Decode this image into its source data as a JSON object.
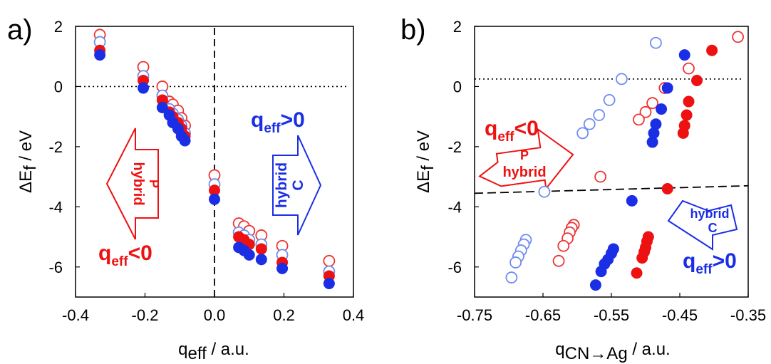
{
  "colors": {
    "red": "#ee1111",
    "blue": "#1a2ee6",
    "open_blue": "#6f8df0",
    "open_red": "#ee3333"
  },
  "chart_data": [
    {
      "type": "scatter",
      "panel_label": "a)",
      "xlabel_main": "q",
      "xlabel_sub": "eff",
      "xlabel_unit": " / a.u.",
      "ylabel_main": "ΔE",
      "ylabel_sub": "f",
      "ylabel_unit": " / eV",
      "xlim": [
        -0.4,
        0.4
      ],
      "ylim": [
        -7,
        2
      ],
      "xticks": [
        -0.4,
        -0.2,
        0.0,
        0.2,
        0.4
      ],
      "xtick_labels": [
        "-0.4",
        "-0.2",
        "0.0",
        "0.2",
        "0.4"
      ],
      "yticks": [
        2,
        0,
        -2,
        -4,
        -6
      ],
      "ytick_labels": [
        "2",
        "0",
        "-2",
        "-4",
        "-6"
      ],
      "reference_lines": {
        "horizontal_dotted_y": 0,
        "vertical_dashed_x": 0
      },
      "annotations": [
        {
          "text_main": "q",
          "text_sub": "eff",
          "text_tail": ">0",
          "color": "blue"
        },
        {
          "text_main": "q",
          "text_sub": "eff",
          "text_tail": "<0",
          "color": "red"
        }
      ],
      "arrows": [
        {
          "direction": "left",
          "color": "red",
          "lines": [
            "P",
            "hybrid"
          ]
        },
        {
          "direction": "right",
          "color": "blue",
          "lines": [
            "hybrid",
            "C"
          ]
        }
      ],
      "series": [
        {
          "style": "open-red",
          "points": [
            [
              -0.33,
              1.72
            ],
            [
              -0.205,
              0.65
            ],
            [
              -0.15,
              0.0
            ],
            [
              -0.13,
              -0.5
            ],
            [
              -0.12,
              -0.6
            ],
            [
              -0.105,
              -0.8
            ],
            [
              -0.095,
              -1.05
            ],
            [
              -0.085,
              -1.3
            ],
            [
              0.0,
              -2.95
            ],
            [
              0.07,
              -4.55
            ],
            [
              0.085,
              -4.65
            ],
            [
              0.1,
              -4.8
            ],
            [
              0.135,
              -4.95
            ],
            [
              0.195,
              -5.3
            ],
            [
              0.33,
              -5.8
            ]
          ]
        },
        {
          "style": "open-blue",
          "points": [
            [
              -0.33,
              1.48
            ],
            [
              -0.205,
              0.35
            ],
            [
              -0.15,
              -0.3
            ],
            [
              -0.13,
              -0.75
            ],
            [
              -0.12,
              -0.9
            ],
            [
              -0.105,
              -1.1
            ],
            [
              -0.095,
              -1.3
            ],
            [
              -0.085,
              -1.55
            ],
            [
              0.0,
              -3.25
            ],
            [
              0.07,
              -4.85
            ],
            [
              0.085,
              -4.95
            ],
            [
              0.1,
              -5.1
            ],
            [
              0.135,
              -5.25
            ],
            [
              0.195,
              -5.6
            ],
            [
              0.33,
              -6.15
            ]
          ]
        },
        {
          "style": "filled-red",
          "points": [
            [
              -0.33,
              1.2
            ],
            [
              -0.205,
              0.2
            ],
            [
              -0.15,
              -0.45
            ],
            [
              -0.13,
              -0.85
            ],
            [
              -0.12,
              -1.0
            ],
            [
              -0.105,
              -1.2
            ],
            [
              -0.095,
              -1.4
            ],
            [
              -0.085,
              -1.65
            ],
            [
              0.0,
              -3.45
            ],
            [
              0.07,
              -5.0
            ],
            [
              0.085,
              -5.1
            ],
            [
              0.1,
              -5.25
            ],
            [
              0.135,
              -5.4
            ],
            [
              0.195,
              -5.85
            ],
            [
              0.33,
              -6.3
            ]
          ]
        },
        {
          "style": "filled-blue",
          "points": [
            [
              -0.33,
              1.05
            ],
            [
              -0.205,
              -0.05
            ],
            [
              -0.15,
              -0.7
            ],
            [
              -0.13,
              -0.95
            ],
            [
              -0.12,
              -1.2
            ],
            [
              -0.105,
              -1.4
            ],
            [
              -0.095,
              -1.65
            ],
            [
              -0.085,
              -1.8
            ],
            [
              0.0,
              -3.75
            ],
            [
              0.07,
              -5.35
            ],
            [
              0.085,
              -5.45
            ],
            [
              0.1,
              -5.6
            ],
            [
              0.135,
              -5.75
            ],
            [
              0.195,
              -6.05
            ],
            [
              0.33,
              -6.55
            ]
          ]
        }
      ]
    },
    {
      "type": "scatter",
      "panel_label": "b)",
      "xlabel_main": "q",
      "xlabel_sub": "CN→Ag",
      "xlabel_unit": " / a.u.",
      "ylabel_main": "ΔE",
      "ylabel_sub": "f",
      "ylabel_unit": " / eV",
      "xlim": [
        -0.75,
        -0.35
      ],
      "ylim": [
        -7,
        2
      ],
      "xticks": [
        -0.75,
        -0.65,
        -0.55,
        -0.45,
        -0.35
      ],
      "xtick_labels": [
        "-0.75",
        "-0.65",
        "-0.55",
        "-0.45",
        "-0.35"
      ],
      "yticks": [
        2,
        0,
        -2,
        -4,
        -6
      ],
      "ytick_labels": [
        "2",
        "0",
        "-2",
        "-4",
        "-6"
      ],
      "reference_lines": {
        "horizontal_dotted_y": 0.25,
        "dashed_line": [
          [
            -0.75,
            -3.55
          ],
          [
            -0.35,
            -3.3
          ]
        ]
      },
      "annotations": [
        {
          "text_main": "q",
          "text_sub": "eff",
          "text_tail": "<0",
          "color": "red"
        },
        {
          "text_main": "q",
          "text_sub": "eff",
          "text_tail": ">0",
          "color": "blue"
        }
      ],
      "arrows": [
        {
          "direction": "up-right",
          "color": "red",
          "lines": [
            "P",
            "hybrid"
          ]
        },
        {
          "direction": "down-right",
          "color": "blue",
          "lines": [
            "hybrid",
            "C"
          ]
        }
      ],
      "series": [
        {
          "style": "open-blue",
          "points": [
            [
              -0.485,
              1.45
            ],
            [
              -0.535,
              0.25
            ],
            [
              -0.553,
              -0.45
            ],
            [
              -0.568,
              -0.95
            ],
            [
              -0.582,
              -1.25
            ],
            [
              -0.592,
              -1.55
            ],
            [
              -0.648,
              -3.5
            ],
            [
              -0.675,
              -5.1
            ],
            [
              -0.678,
              -5.25
            ],
            [
              -0.682,
              -5.45
            ],
            [
              -0.686,
              -5.65
            ],
            [
              -0.69,
              -5.85
            ],
            [
              -0.696,
              -6.35
            ]
          ]
        },
        {
          "style": "open-red",
          "points": [
            [
              -0.365,
              1.65
            ],
            [
              -0.437,
              0.6
            ],
            [
              -0.472,
              -0.05
            ],
            [
              -0.49,
              -0.55
            ],
            [
              -0.5,
              -0.85
            ],
            [
              -0.51,
              -1.1
            ],
            [
              -0.566,
              -3.0
            ],
            [
              -0.605,
              -4.6
            ],
            [
              -0.608,
              -4.7
            ],
            [
              -0.611,
              -4.85
            ],
            [
              -0.614,
              -5.05
            ],
            [
              -0.62,
              -5.3
            ],
            [
              -0.627,
              -5.8
            ]
          ]
        },
        {
          "style": "filled-blue",
          "points": [
            [
              -0.443,
              1.05
            ],
            [
              -0.468,
              -0.05
            ],
            [
              -0.477,
              -0.75
            ],
            [
              -0.485,
              -1.25
            ],
            [
              -0.488,
              -1.55
            ],
            [
              -0.49,
              -1.85
            ],
            [
              -0.52,
              -3.8
            ],
            [
              -0.547,
              -5.4
            ],
            [
              -0.55,
              -5.55
            ],
            [
              -0.555,
              -5.75
            ],
            [
              -0.56,
              -5.9
            ],
            [
              -0.565,
              -6.15
            ],
            [
              -0.573,
              -6.6
            ]
          ]
        },
        {
          "style": "filled-red",
          "points": [
            [
              -0.403,
              1.2
            ],
            [
              -0.425,
              0.2
            ],
            [
              -0.437,
              -0.5
            ],
            [
              -0.44,
              -0.95
            ],
            [
              -0.443,
              -1.3
            ],
            [
              -0.445,
              -1.55
            ],
            [
              -0.468,
              -3.4
            ],
            [
              -0.496,
              -5.0
            ],
            [
              -0.498,
              -5.15
            ],
            [
              -0.5,
              -5.35
            ],
            [
              -0.502,
              -5.5
            ],
            [
              -0.505,
              -5.7
            ],
            [
              -0.513,
              -6.2
            ]
          ]
        }
      ]
    }
  ]
}
